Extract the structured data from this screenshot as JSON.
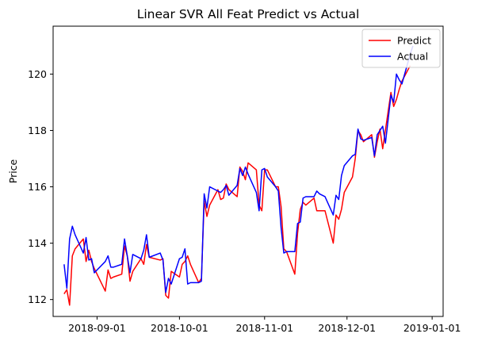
{
  "chart_data": {
    "type": "line",
    "title": "Linear SVR All Feat Predict vs Actual",
    "xlabel": "",
    "ylabel": "Price",
    "ylim": [
      111.4,
      121.7
    ],
    "xlim": [
      "2018-08-16",
      "2019-01-05"
    ],
    "x_ticks": [
      "2018-09-01",
      "2018-10-01",
      "2018-11-01",
      "2018-12-01",
      "2019-01-01"
    ],
    "y_ticks": [
      112,
      114,
      116,
      118,
      120
    ],
    "grid": false,
    "legend_position": "upper-right",
    "series": [
      {
        "name": "Predict",
        "color": "#ff0000",
        "points": [
          [
            "2018-08-20",
            112.2
          ],
          [
            "2018-08-21",
            112.35
          ],
          [
            "2018-08-22",
            111.8
          ],
          [
            "2018-08-23",
            113.55
          ],
          [
            "2018-08-24",
            113.8
          ],
          [
            "2018-08-27",
            114.15
          ],
          [
            "2018-08-28",
            113.35
          ],
          [
            "2018-08-29",
            113.75
          ],
          [
            "2018-08-30",
            113.35
          ],
          [
            "2018-08-31",
            113.1
          ],
          [
            "2018-09-04",
            112.3
          ],
          [
            "2018-09-05",
            113.05
          ],
          [
            "2018-09-06",
            112.75
          ],
          [
            "2018-09-07",
            112.8
          ],
          [
            "2018-09-10",
            112.9
          ],
          [
            "2018-09-11",
            113.9
          ],
          [
            "2018-09-12",
            113.55
          ],
          [
            "2018-09-13",
            112.65
          ],
          [
            "2018-09-14",
            113.0
          ],
          [
            "2018-09-17",
            113.45
          ],
          [
            "2018-09-18",
            113.25
          ],
          [
            "2018-09-19",
            113.95
          ],
          [
            "2018-09-20",
            113.5
          ],
          [
            "2018-09-24",
            113.4
          ],
          [
            "2018-09-25",
            113.45
          ],
          [
            "2018-09-26",
            112.15
          ],
          [
            "2018-09-27",
            112.05
          ],
          [
            "2018-09-28",
            113.0
          ],
          [
            "2018-10-01",
            112.8
          ],
          [
            "2018-10-02",
            113.25
          ],
          [
            "2018-10-03",
            113.35
          ],
          [
            "2018-10-04",
            113.55
          ],
          [
            "2018-10-05",
            113.25
          ],
          [
            "2018-10-08",
            112.6
          ],
          [
            "2018-10-09",
            112.75
          ],
          [
            "2018-10-10",
            115.5
          ],
          [
            "2018-10-11",
            114.95
          ],
          [
            "2018-10-12",
            115.35
          ],
          [
            "2018-10-15",
            115.9
          ],
          [
            "2018-10-16",
            115.55
          ],
          [
            "2018-10-17",
            115.6
          ],
          [
            "2018-10-18",
            116.1
          ],
          [
            "2018-10-19",
            115.9
          ],
          [
            "2018-10-22",
            115.65
          ],
          [
            "2018-10-23",
            116.7
          ],
          [
            "2018-10-24",
            116.55
          ],
          [
            "2018-10-25",
            116.25
          ],
          [
            "2018-10-26",
            116.85
          ],
          [
            "2018-10-29",
            116.6
          ],
          [
            "2018-10-30",
            115.35
          ],
          [
            "2018-10-31",
            115.15
          ],
          [
            "2018-11-01",
            116.6
          ],
          [
            "2018-11-02",
            116.6
          ],
          [
            "2018-11-05",
            116.0
          ],
          [
            "2018-11-06",
            116.0
          ],
          [
            "2018-11-07",
            115.3
          ],
          [
            "2018-11-08",
            113.8
          ],
          [
            "2018-11-09",
            113.7
          ],
          [
            "2018-11-12",
            112.9
          ],
          [
            "2018-11-13",
            114.35
          ],
          [
            "2018-11-14",
            115.2
          ],
          [
            "2018-11-15",
            115.45
          ],
          [
            "2018-11-16",
            115.35
          ],
          [
            "2018-11-19",
            115.6
          ],
          [
            "2018-11-20",
            115.15
          ],
          [
            "2018-11-21",
            115.15
          ],
          [
            "2018-11-23",
            115.15
          ],
          [
            "2018-11-26",
            114.0
          ],
          [
            "2018-11-27",
            115.0
          ],
          [
            "2018-11-28",
            114.85
          ],
          [
            "2018-11-29",
            115.2
          ],
          [
            "2018-11-30",
            115.8
          ],
          [
            "2018-12-03",
            116.35
          ],
          [
            "2018-12-04",
            117.0
          ],
          [
            "2018-12-05",
            118.0
          ],
          [
            "2018-12-06",
            117.85
          ],
          [
            "2018-12-07",
            117.6
          ],
          [
            "2018-12-10",
            117.85
          ],
          [
            "2018-12-11",
            117.05
          ],
          [
            "2018-12-12",
            117.6
          ],
          [
            "2018-12-13",
            118.05
          ],
          [
            "2018-12-14",
            117.35
          ],
          [
            "2018-12-17",
            119.35
          ],
          [
            "2018-12-18",
            118.85
          ],
          [
            "2018-12-19",
            119.1
          ],
          [
            "2018-12-20",
            119.45
          ],
          [
            "2018-12-21",
            119.75
          ],
          [
            "2018-12-24",
            120.3
          ]
        ]
      },
      {
        "name": "Actual",
        "color": "#0000ff",
        "points": [
          [
            "2018-08-20",
            113.25
          ],
          [
            "2018-08-21",
            112.4
          ],
          [
            "2018-08-22",
            114.15
          ],
          [
            "2018-08-23",
            114.6
          ],
          [
            "2018-08-24",
            114.3
          ],
          [
            "2018-08-27",
            113.65
          ],
          [
            "2018-08-28",
            114.2
          ],
          [
            "2018-08-29",
            113.4
          ],
          [
            "2018-08-30",
            113.45
          ],
          [
            "2018-08-31",
            112.95
          ],
          [
            "2018-09-04",
            113.35
          ],
          [
            "2018-09-05",
            113.55
          ],
          [
            "2018-09-06",
            113.15
          ],
          [
            "2018-09-07",
            113.15
          ],
          [
            "2018-09-10",
            113.25
          ],
          [
            "2018-09-11",
            114.15
          ],
          [
            "2018-09-12",
            113.55
          ],
          [
            "2018-09-13",
            112.95
          ],
          [
            "2018-09-14",
            113.6
          ],
          [
            "2018-09-17",
            113.45
          ],
          [
            "2018-09-18",
            113.75
          ],
          [
            "2018-09-19",
            114.3
          ],
          [
            "2018-09-20",
            113.5
          ],
          [
            "2018-09-24",
            113.65
          ],
          [
            "2018-09-25",
            113.4
          ],
          [
            "2018-09-26",
            112.25
          ],
          [
            "2018-09-27",
            112.75
          ],
          [
            "2018-09-28",
            112.55
          ],
          [
            "2018-10-01",
            113.45
          ],
          [
            "2018-10-02",
            113.5
          ],
          [
            "2018-10-03",
            113.8
          ],
          [
            "2018-10-04",
            112.55
          ],
          [
            "2018-10-05",
            112.6
          ],
          [
            "2018-10-08",
            112.6
          ],
          [
            "2018-10-09",
            112.65
          ],
          [
            "2018-10-10",
            115.75
          ],
          [
            "2018-10-11",
            115.25
          ],
          [
            "2018-10-12",
            116.0
          ],
          [
            "2018-10-15",
            115.85
          ],
          [
            "2018-10-16",
            115.8
          ],
          [
            "2018-10-17",
            115.9
          ],
          [
            "2018-10-18",
            116.05
          ],
          [
            "2018-10-19",
            115.7
          ],
          [
            "2018-10-22",
            116.05
          ],
          [
            "2018-10-23",
            116.65
          ],
          [
            "2018-10-24",
            116.4
          ],
          [
            "2018-10-25",
            116.7
          ],
          [
            "2018-10-26",
            116.45
          ],
          [
            "2018-10-29",
            115.8
          ],
          [
            "2018-10-30",
            115.15
          ],
          [
            "2018-10-31",
            116.6
          ],
          [
            "2018-11-01",
            116.65
          ],
          [
            "2018-11-02",
            116.35
          ],
          [
            "2018-11-05",
            116.0
          ],
          [
            "2018-11-06",
            115.85
          ],
          [
            "2018-11-07",
            114.55
          ],
          [
            "2018-11-08",
            113.65
          ],
          [
            "2018-11-09",
            113.7
          ],
          [
            "2018-11-12",
            113.7
          ],
          [
            "2018-11-13",
            114.7
          ],
          [
            "2018-11-14",
            114.75
          ],
          [
            "2018-11-15",
            115.6
          ],
          [
            "2018-11-16",
            115.65
          ],
          [
            "2018-11-19",
            115.65
          ],
          [
            "2018-11-20",
            115.85
          ],
          [
            "2018-11-21",
            115.75
          ],
          [
            "2018-11-23",
            115.65
          ],
          [
            "2018-11-26",
            115.0
          ],
          [
            "2018-11-27",
            115.7
          ],
          [
            "2018-11-28",
            115.55
          ],
          [
            "2018-11-29",
            116.4
          ],
          [
            "2018-11-30",
            116.75
          ],
          [
            "2018-12-03",
            117.1
          ],
          [
            "2018-12-04",
            117.15
          ],
          [
            "2018-12-05",
            118.05
          ],
          [
            "2018-12-06",
            117.7
          ],
          [
            "2018-12-07",
            117.65
          ],
          [
            "2018-12-10",
            117.75
          ],
          [
            "2018-12-11",
            117.1
          ],
          [
            "2018-12-12",
            117.85
          ],
          [
            "2018-12-13",
            118.0
          ],
          [
            "2018-12-14",
            118.15
          ],
          [
            "2018-12-15",
            117.55
          ],
          [
            "2018-12-17",
            119.25
          ],
          [
            "2018-12-18",
            119.0
          ],
          [
            "2018-12-19",
            120.0
          ],
          [
            "2018-12-20",
            119.8
          ],
          [
            "2018-12-21",
            119.65
          ],
          [
            "2018-12-24",
            120.7
          ],
          [
            "2018-12-25",
            121.0
          ]
        ]
      }
    ]
  }
}
